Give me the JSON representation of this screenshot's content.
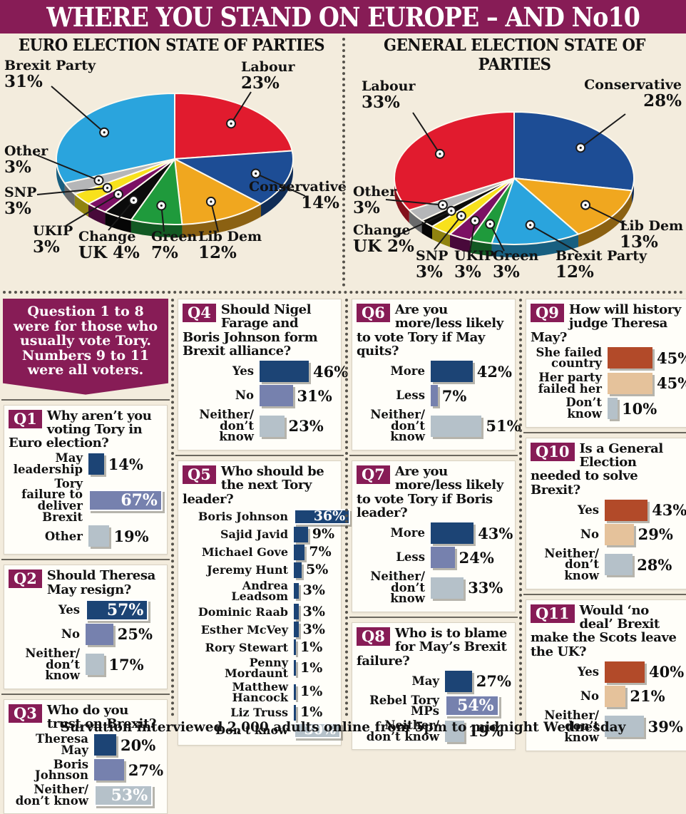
{
  "header": {
    "title": "WHERE YOU STAND ON EUROPE – AND No10"
  },
  "note": {
    "text": "Question 1 to 8 were for those who usually vote Tory. Numbers 9 to 11 were all voters."
  },
  "footer": {
    "text": "Survation interviewed 2,000 adults online from 5pm to midnight Wednesday"
  },
  "palette": {
    "accent": "#871c56",
    "background": "#f3ecdd",
    "panel": "#fffef9",
    "bar_dark": "#1c4475",
    "bar_mid": "#7681ae",
    "bar_light": "#b5c1c9",
    "bar_rust": "#b24a29",
    "bar_tan": "#e5c29b"
  },
  "chart_data": {
    "pies": [
      {
        "type": "pie",
        "title": "EURO ELECTION STATE OF PARTIES",
        "slices": [
          {
            "label": "Labour",
            "value": 23,
            "pct": "23%",
            "color": "#e11b2e",
            "label_lines": [
              "Labour",
              "23%"
            ]
          },
          {
            "label": "Conservative",
            "value": 14,
            "pct": "14%",
            "color": "#1d4d95",
            "label_lines": [
              "Conservative",
              "14%"
            ]
          },
          {
            "label": "Lib Dem",
            "value": 12,
            "pct": "12%",
            "color": "#f0a71f",
            "label_lines": [
              "Lib Dem",
              "12%"
            ]
          },
          {
            "label": "Green",
            "value": 7,
            "pct": "7%",
            "color": "#1f9a3c",
            "label_lines": [
              "Green",
              "7%"
            ]
          },
          {
            "label": "Change UK",
            "value": 4,
            "pct": "4%",
            "color": "#0b0b0b",
            "label_lines": [
              "Change",
              "UK 4%"
            ]
          },
          {
            "label": "UKIP",
            "value": 3,
            "pct": "3%",
            "color": "#7c1064",
            "label_lines": [
              "UKIP",
              "3%"
            ]
          },
          {
            "label": "SNP",
            "value": 3,
            "pct": "3%",
            "color": "#f8e11c",
            "label_lines": [
              "SNP",
              "3%"
            ]
          },
          {
            "label": "Other",
            "value": 3,
            "pct": "3%",
            "color": "#b5b6b8",
            "label_lines": [
              "Other",
              "3%"
            ]
          },
          {
            "label": "Brexit Party",
            "value": 31,
            "pct": "31%",
            "color": "#2aa4dd",
            "label_lines": [
              "Brexit Party",
              "31%"
            ]
          }
        ]
      },
      {
        "type": "pie",
        "title": "GENERAL ELECTION STATE OF PARTIES",
        "slices": [
          {
            "label": "Conservative",
            "value": 28,
            "pct": "28%",
            "color": "#1d4d95",
            "label_lines": [
              "Conservative",
              "28%"
            ]
          },
          {
            "label": "Lib Dem",
            "value": 13,
            "pct": "13%",
            "color": "#f0a71f",
            "label_lines": [
              "Lib Dem",
              "13%"
            ]
          },
          {
            "label": "Brexit Party",
            "value": 12,
            "pct": "12%",
            "color": "#2aa4dd",
            "label_lines": [
              "Brexit Party",
              "12%"
            ]
          },
          {
            "label": "Green",
            "value": 3,
            "pct": "3%",
            "color": "#1f9a3c",
            "label_lines": [
              "Green",
              "3%"
            ]
          },
          {
            "label": "UKIP",
            "value": 3,
            "pct": "3%",
            "color": "#7c1064",
            "label_lines": [
              "UKIP",
              "3%"
            ]
          },
          {
            "label": "SNP",
            "value": 3,
            "pct": "3%",
            "color": "#f8e11c",
            "label_lines": [
              "SNP",
              "3%"
            ]
          },
          {
            "label": "Change UK",
            "value": 2,
            "pct": "2%",
            "color": "#0b0b0b",
            "label_lines": [
              "Change",
              "UK 2%"
            ]
          },
          {
            "label": "Other",
            "value": 3,
            "pct": "3%",
            "color": "#b5b6b8",
            "label_lines": [
              "Other",
              "3%"
            ]
          },
          {
            "label": "Labour",
            "value": 33,
            "pct": "33%",
            "color": "#e11b2e",
            "label_lines": [
              "Labour",
              "33%"
            ]
          }
        ]
      }
    ],
    "questions": [
      {
        "id": "Q1",
        "question": "Why aren’t you voting Tory in Euro election?",
        "bars": [
          {
            "label": "May\nleadership",
            "value": 14,
            "pct": "14%",
            "color": "dark",
            "inside": false
          },
          {
            "label": "Tory failure to\ndeliver Brexit",
            "value": 67,
            "pct": "67%",
            "color": "mid",
            "inside": true
          },
          {
            "label": "Other",
            "value": 19,
            "pct": "19%",
            "color": "light",
            "inside": false
          }
        ]
      },
      {
        "id": "Q2",
        "question": "Should Theresa May resign?",
        "bars": [
          {
            "label": "Yes",
            "value": 57,
            "pct": "57%",
            "color": "dark",
            "inside": true
          },
          {
            "label": "No",
            "value": 25,
            "pct": "25%",
            "color": "mid",
            "inside": false
          },
          {
            "label": "Neither/\ndon’t know",
            "value": 17,
            "pct": "17%",
            "color": "light",
            "inside": false
          }
        ]
      },
      {
        "id": "Q3",
        "question": "Who do you trust on Brexit?",
        "bars": [
          {
            "label": "Theresa May",
            "value": 20,
            "pct": "20%",
            "color": "dark",
            "inside": false
          },
          {
            "label": "Boris Johnson",
            "value": 27,
            "pct": "27%",
            "color": "mid",
            "inside": false
          },
          {
            "label": "Neither/\ndon’t know",
            "value": 53,
            "pct": "53%",
            "color": "light",
            "inside": true
          }
        ]
      },
      {
        "id": "Q4",
        "question": "Should Nigel Farage and Boris Johnson form Brexit alliance?",
        "bars": [
          {
            "label": "Yes",
            "value": 46,
            "pct": "46%",
            "color": "dark",
            "inside": false
          },
          {
            "label": "No",
            "value": 31,
            "pct": "31%",
            "color": "mid",
            "inside": false
          },
          {
            "label": "Neither/\ndon’t know",
            "value": 23,
            "pct": "23%",
            "color": "light",
            "inside": false
          }
        ]
      },
      {
        "id": "Q5",
        "question": "Who should be the next Tory leader?",
        "bars": [
          {
            "label": "Boris Johnson",
            "value": 36,
            "pct": "36%",
            "color": "dark",
            "inside": true
          },
          {
            "label": "Sajid Javid",
            "value": 9,
            "pct": "9%",
            "color": "dark",
            "inside": false
          },
          {
            "label": "Michael Gove",
            "value": 7,
            "pct": "7%",
            "color": "dark",
            "inside": false
          },
          {
            "label": "Jeremy Hunt",
            "value": 5,
            "pct": "5%",
            "color": "dark",
            "inside": false
          },
          {
            "label": "Andrea Leadsom",
            "value": 3,
            "pct": "3%",
            "color": "dark",
            "inside": false
          },
          {
            "label": "Dominic Raab",
            "value": 3,
            "pct": "3%",
            "color": "dark",
            "inside": false
          },
          {
            "label": "Esther McVey",
            "value": 3,
            "pct": "3%",
            "color": "dark",
            "inside": false
          },
          {
            "label": "Rory Stewart",
            "value": 1,
            "pct": "1%",
            "color": "dark",
            "inside": false
          },
          {
            "label": "Penny Mordaunt",
            "value": 1,
            "pct": "1%",
            "color": "dark",
            "inside": false
          },
          {
            "label": "Matthew Hancock",
            "value": 1,
            "pct": "1%",
            "color": "dark",
            "inside": false
          },
          {
            "label": "Liz Truss",
            "value": 1,
            "pct": "1%",
            "color": "dark",
            "inside": false
          },
          {
            "label": "Don’t know",
            "value": 30,
            "pct": "30%",
            "color": "light",
            "inside": true
          }
        ]
      },
      {
        "id": "Q6",
        "question": "Are you more/less likely to vote Tory if May quits?",
        "bars": [
          {
            "label": "More",
            "value": 42,
            "pct": "42%",
            "color": "dark",
            "inside": false
          },
          {
            "label": "Less",
            "value": 7,
            "pct": "7%",
            "color": "mid",
            "inside": false
          },
          {
            "label": "Neither/\ndon’t know",
            "value": 51,
            "pct": "51%",
            "color": "light",
            "inside": false
          }
        ]
      },
      {
        "id": "Q7",
        "question": "Are you more/less likely to vote Tory if Boris leader?",
        "bars": [
          {
            "label": "More",
            "value": 43,
            "pct": "43%",
            "color": "dark",
            "inside": false
          },
          {
            "label": "Less",
            "value": 24,
            "pct": "24%",
            "color": "mid",
            "inside": false
          },
          {
            "label": "Neither/\ndon’t know",
            "value": 33,
            "pct": "33%",
            "color": "light",
            "inside": false
          }
        ]
      },
      {
        "id": "Q8",
        "question": "Who is to blame for May’s Brexit failure?",
        "bars": [
          {
            "label": "May",
            "value": 27,
            "pct": "27%",
            "color": "dark",
            "inside": false
          },
          {
            "label": "Rebel Tory MPs",
            "value": 54,
            "pct": "54%",
            "color": "mid",
            "inside": true
          },
          {
            "label": "Neither/\ndon’t know",
            "value": 19,
            "pct": "19%",
            "color": "light",
            "inside": false
          }
        ]
      },
      {
        "id": "Q9",
        "question": "How will history judge Theresa May?",
        "bars": [
          {
            "label": "She failed\ncountry",
            "value": 45,
            "pct": "45%",
            "color": "rust",
            "inside": false
          },
          {
            "label": "Her party\nfailed her",
            "value": 45,
            "pct": "45%",
            "color": "tan",
            "inside": false
          },
          {
            "label": "Don’t know",
            "value": 10,
            "pct": "10%",
            "color": "light",
            "inside": false
          }
        ]
      },
      {
        "id": "Q10",
        "question": "Is a General Election needed to solve Brexit?",
        "bars": [
          {
            "label": "Yes",
            "value": 43,
            "pct": "43%",
            "color": "rust",
            "inside": false
          },
          {
            "label": "No",
            "value": 29,
            "pct": "29%",
            "color": "tan",
            "inside": false
          },
          {
            "label": "Neither/\ndon’t know",
            "value": 28,
            "pct": "28%",
            "color": "light",
            "inside": false
          }
        ]
      },
      {
        "id": "Q11",
        "question": "Would ‘no deal’ Brexit make the Scots leave the UK?",
        "bars": [
          {
            "label": "Yes",
            "value": 40,
            "pct": "40%",
            "color": "rust",
            "inside": false
          },
          {
            "label": "No",
            "value": 21,
            "pct": "21%",
            "color": "tan",
            "inside": false
          },
          {
            "label": "Neither/\ndon’t know",
            "value": 39,
            "pct": "39%",
            "color": "light",
            "inside": false
          }
        ]
      }
    ]
  }
}
